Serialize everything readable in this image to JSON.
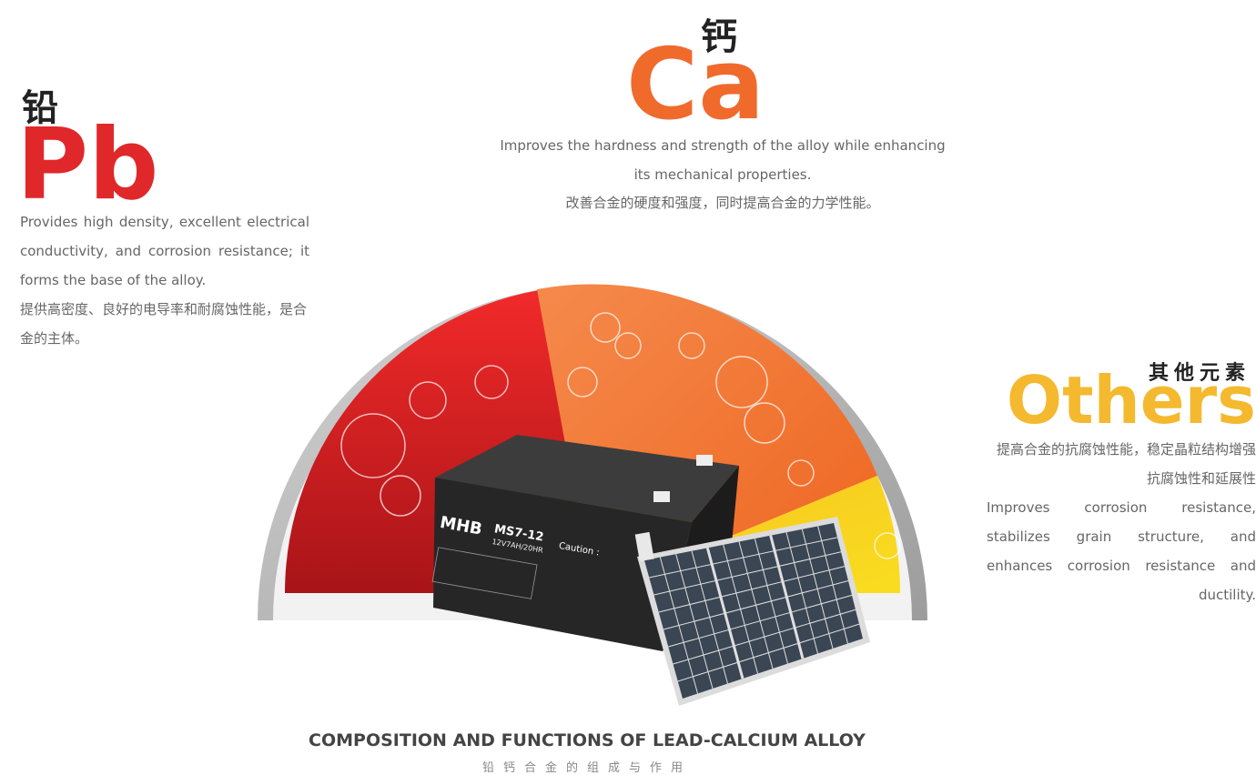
{
  "pb": {
    "cn": "铅",
    "symbol": "Pb",
    "en": "Provides high density, excellent electrical conductivity, and corrosion resistance; it forms the base of the alloy.",
    "desc_cn": "提供高密度、良好的电导率和耐腐蚀性能，是合金的主体。"
  },
  "ca": {
    "cn": "钙",
    "symbol": "Ca",
    "en": "Improves the hardness and strength of the alloy while enhancing its mechanical properties.",
    "desc_cn": "改善合金的硬度和强度，同时提高合金的力学性能。"
  },
  "others": {
    "cn": "其他元素",
    "symbol": "Others",
    "desc_cn": "提高合金的抗腐蚀性能，稳定晶粒结构增强抗腐蚀性和延展性",
    "en": "Improves corrosion resistance, stabilizes grain structure, and enhances corrosion resistance and ductility."
  },
  "battery": {
    "brand": "MHB",
    "model": "MS7-12",
    "rating": "12V7AH/20HR",
    "caution": "Caution :"
  },
  "footer": {
    "title": "COMPOSITION AND FUNCTIONS OF LEAD-CALCIUM ALLOY",
    "subtitle": "铅钙合金的组成与作用"
  }
}
